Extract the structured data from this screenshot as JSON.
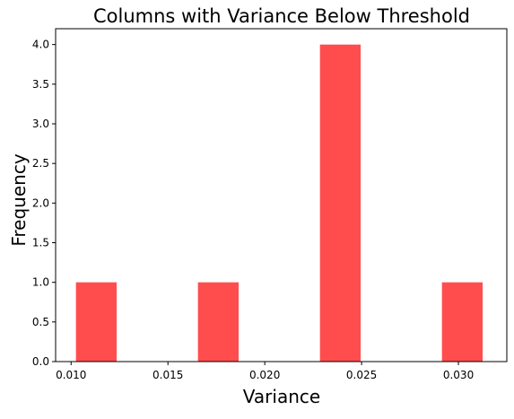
{
  "chart_data": {
    "type": "bar",
    "title": "Columns with Variance Below Threshold",
    "xlabel": "Variance",
    "ylabel": "Frequency",
    "bar_color": "#ff4d4d",
    "xlim": [
      0.0092,
      0.0325
    ],
    "ylim": [
      0,
      4.2
    ],
    "xticks": [
      0.01,
      0.015,
      0.02,
      0.025,
      0.03
    ],
    "xtick_labels": [
      "0.010",
      "0.015",
      "0.020",
      "0.025",
      "0.030"
    ],
    "yticks": [
      0.0,
      0.5,
      1.0,
      1.5,
      2.0,
      2.5,
      3.0,
      3.5,
      4.0
    ],
    "ytick_labels": [
      "0.0",
      "0.5",
      "1.0",
      "1.5",
      "2.0",
      "2.5",
      "3.0",
      "3.5",
      "4.0"
    ],
    "bins": [
      {
        "x0": 0.01025,
        "x1": 0.01235,
        "value": 1
      },
      {
        "x0": 0.01235,
        "x1": 0.01445,
        "value": 0
      },
      {
        "x0": 0.01445,
        "x1": 0.01655,
        "value": 0
      },
      {
        "x0": 0.01655,
        "x1": 0.01865,
        "value": 1
      },
      {
        "x0": 0.01865,
        "x1": 0.02075,
        "value": 0
      },
      {
        "x0": 0.02075,
        "x1": 0.02285,
        "value": 0
      },
      {
        "x0": 0.02285,
        "x1": 0.02495,
        "value": 4
      },
      {
        "x0": 0.02495,
        "x1": 0.02705,
        "value": 0
      },
      {
        "x0": 0.02705,
        "x1": 0.02915,
        "value": 0
      },
      {
        "x0": 0.02915,
        "x1": 0.03125,
        "value": 1
      }
    ],
    "grid": false,
    "legend": "none"
  }
}
